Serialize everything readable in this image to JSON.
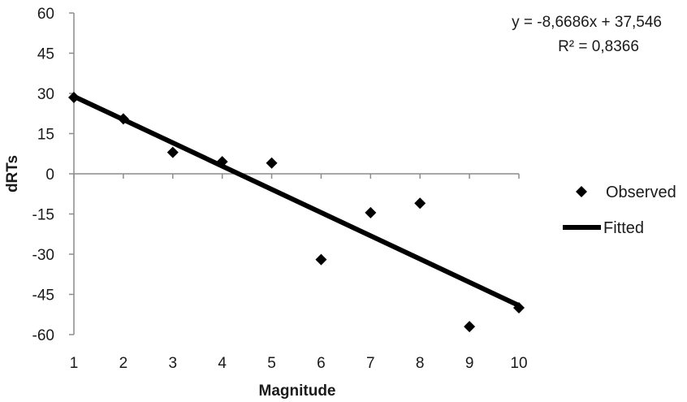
{
  "chart_data": {
    "type": "scatter",
    "title": "",
    "xlabel": "Magnitude",
    "ylabel": "dRTs",
    "xlim": [
      1,
      10
    ],
    "ylim": [
      -60,
      60
    ],
    "x_ticks": [
      1,
      2,
      3,
      4,
      5,
      6,
      7,
      8,
      9,
      10
    ],
    "y_ticks": [
      60,
      45,
      30,
      15,
      0,
      -15,
      -30,
      -45,
      -60
    ],
    "grid": false,
    "legend_position": "right",
    "series": [
      {
        "name": "Observed",
        "kind": "scatter",
        "marker": "diamond",
        "color": "#000000",
        "x": [
          1,
          2,
          3,
          4,
          5,
          6,
          7,
          8,
          9,
          10
        ],
        "y": [
          28.5,
          20.5,
          8,
          4.5,
          4,
          -32,
          -14.5,
          -11,
          -57,
          -50
        ]
      },
      {
        "name": "Fitted",
        "kind": "line",
        "color": "#000000",
        "x": [
          1,
          10
        ],
        "y": [
          28.88,
          -49.14
        ]
      }
    ],
    "annotations": {
      "equation": "y = -8,6686x + 37,546",
      "r_squared": "R² = 0,8366"
    }
  }
}
